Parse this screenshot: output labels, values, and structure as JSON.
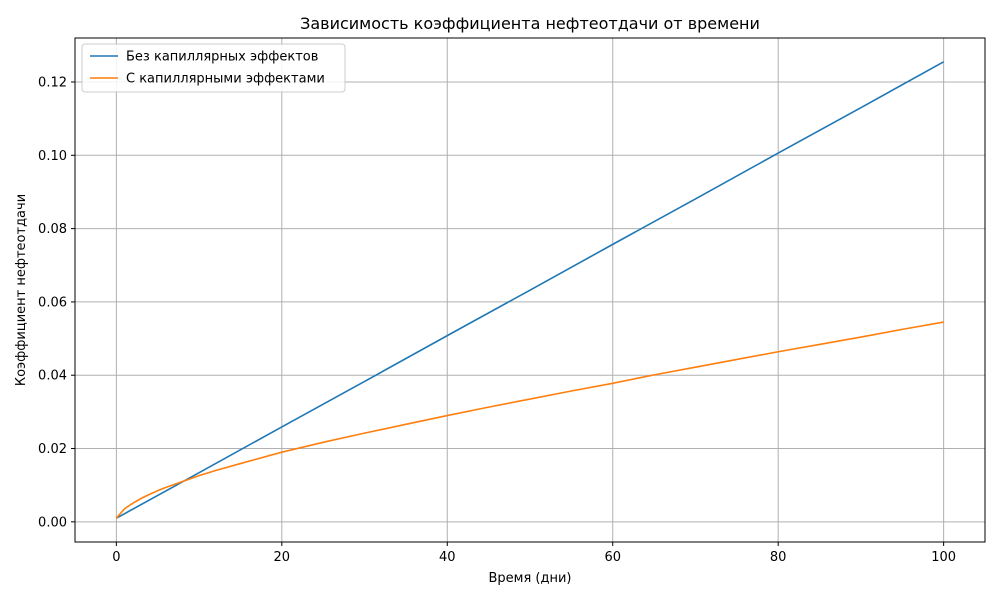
{
  "chart_data": {
    "type": "line",
    "title": "Зависимость коэффициента нефтеотдачи от времени",
    "xlabel": "Время (дни)",
    "ylabel": "Коэффициент нефтеотдачи",
    "xlim": [
      -5,
      105
    ],
    "ylim": [
      -0.0055,
      0.132
    ],
    "x_ticks": [
      0,
      20,
      40,
      60,
      80,
      100
    ],
    "y_ticks": [
      0.0,
      0.02,
      0.04,
      0.06,
      0.08,
      0.1,
      0.12
    ],
    "x_tick_labels": [
      "0",
      "20",
      "40",
      "60",
      "80",
      "100"
    ],
    "y_tick_labels": [
      "0.00",
      "0.02",
      "0.04",
      "0.06",
      "0.08",
      "0.10",
      "0.12"
    ],
    "grid": true,
    "legend_position": "top-left",
    "series": [
      {
        "name": "Без капиллярных эффектов",
        "color": "#1f77b4",
        "x": [
          0,
          10,
          20,
          30,
          40,
          50,
          60,
          70,
          80,
          90,
          100
        ],
        "y": [
          0.001,
          0.0134,
          0.0259,
          0.0383,
          0.0508,
          0.0632,
          0.0757,
          0.0881,
          0.1006,
          0.113,
          0.1255
        ]
      },
      {
        "name": "С капиллярными эффектами",
        "color": "#ff7f0e",
        "x": [
          0,
          1,
          2,
          3,
          4,
          5,
          6,
          8,
          10,
          12,
          15,
          20,
          25,
          30,
          35,
          40,
          45,
          50,
          55,
          60,
          65,
          70,
          75,
          80,
          85,
          90,
          95,
          100
        ],
        "y": [
          0.001,
          0.0036,
          0.0051,
          0.0064,
          0.0075,
          0.0085,
          0.0094,
          0.011,
          0.0126,
          0.014,
          0.0159,
          0.019,
          0.0217,
          0.0242,
          0.0266,
          0.029,
          0.0313,
          0.0335,
          0.0357,
          0.0378,
          0.0401,
          0.0422,
          0.0443,
          0.0464,
          0.0484,
          0.0504,
          0.0525,
          0.0545
        ]
      }
    ]
  }
}
